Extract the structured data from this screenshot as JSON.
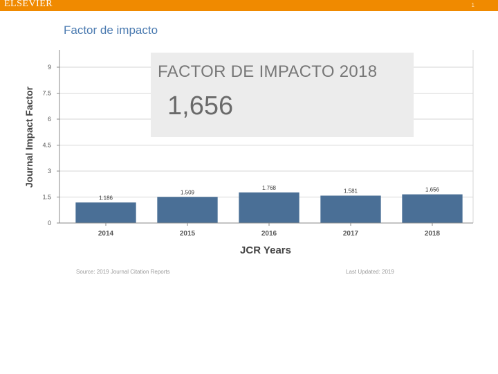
{
  "header": {
    "brand": "ELSEVIER",
    "slide_number": "1"
  },
  "slide_title": "Factor de impacto",
  "highlight": {
    "title": "FACTOR DE IMPACTO 2018",
    "value": "1,656"
  },
  "footer": {
    "source": "Source: 2019 Journal Citation Reports",
    "updated": "Last Updated: 2019"
  },
  "colors": {
    "bar": "#4a6f96",
    "accent": "#f08a00",
    "grid": "#d6d6d6"
  },
  "chart_data": {
    "type": "bar",
    "title": "",
    "xlabel": "JCR Years",
    "ylabel": "Journal Impact Factor",
    "categories": [
      "2014",
      "2015",
      "2016",
      "2017",
      "2018"
    ],
    "values": [
      1.186,
      1.509,
      1.768,
      1.581,
      1.656
    ],
    "value_labels": [
      "1.186",
      "1.509",
      "1.768",
      "1.581",
      "1.656"
    ],
    "ylim": [
      0,
      10
    ],
    "yticks": [
      0,
      1.5,
      3,
      4.5,
      6,
      7.5,
      9
    ],
    "ytick_labels": [
      "0",
      "1.5",
      "3",
      "4.5",
      "6",
      "7.5",
      "9"
    ],
    "grid": true
  }
}
